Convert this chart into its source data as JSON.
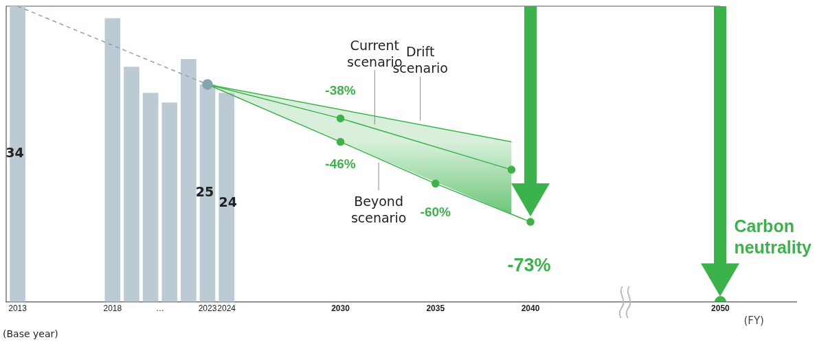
{
  "chart_data": {
    "type": "bar",
    "x": [
      2013,
      2018,
      2019,
      2020,
      2021,
      2022,
      2023,
      2024
    ],
    "values": [
      34,
      32.6,
      27,
      24,
      22.9,
      27.9,
      25,
      24
    ],
    "color": "#bccbd3",
    "value_labels": [
      "34",
      null,
      null,
      null,
      null,
      null,
      "25",
      "24"
    ],
    "series": [
      {
        "type": "line",
        "x": [
          2013,
          2023
        ],
        "values": [
          34,
          25
        ],
        "color": "#86a3ad",
        "line_style": "dashed",
        "marker": "circle"
      },
      {
        "type": "line",
        "name": "Drift scenario",
        "x": [
          2023,
          2039
        ],
        "values": [
          25,
          18.4
        ],
        "color": "#3bb34a"
      },
      {
        "type": "line",
        "name": "Current scenario",
        "x": [
          2023,
          2030,
          2039
        ],
        "values": [
          25,
          21.1,
          15.2
        ],
        "color": "#3bb34a",
        "marker": "circle",
        "lower": [
          25,
          18.4,
          10.1
        ],
        "upper": [
          25,
          22.1,
          18.4
        ]
      },
      {
        "type": "line",
        "name": "Beyond scenario",
        "x": [
          2023,
          2030,
          2035,
          2040
        ],
        "values": [
          25,
          18.4,
          13.6,
          9.2
        ],
        "color": "#3bb34a",
        "marker": "circle"
      },
      {
        "type": "scatter",
        "x": [
          2050
        ],
        "values": [
          0
        ],
        "color": "#3bb34a",
        "marker": "circle"
      }
    ],
    "xlabel": "(FY)",
    "xlim": [
      2012.4,
      2054
    ],
    "xticks": [
      2013,
      2018,
      {
        "value": 2020.5,
        "label": "…"
      },
      2023,
      2024,
      2030,
      2035,
      2040,
      2050
    ],
    "ylim": [
      0,
      34
    ],
    "tick_labels": "x",
    "grid": false,
    "legend": false,
    "annotations": [
      "(Base year)",
      {
        "text": "-38%",
        "x": 2030,
        "y": 21.1
      },
      {
        "text": "-46%",
        "x": 2030,
        "y": 18.4
      },
      {
        "text": "-60%",
        "x": 2035,
        "y": 13.6
      },
      {
        "text": "-73%",
        "x": 2040,
        "y": 9.2
      },
      {
        "text": "Carbon neutrality",
        "x": 2050,
        "y": 0
      }
    ]
  }
}
